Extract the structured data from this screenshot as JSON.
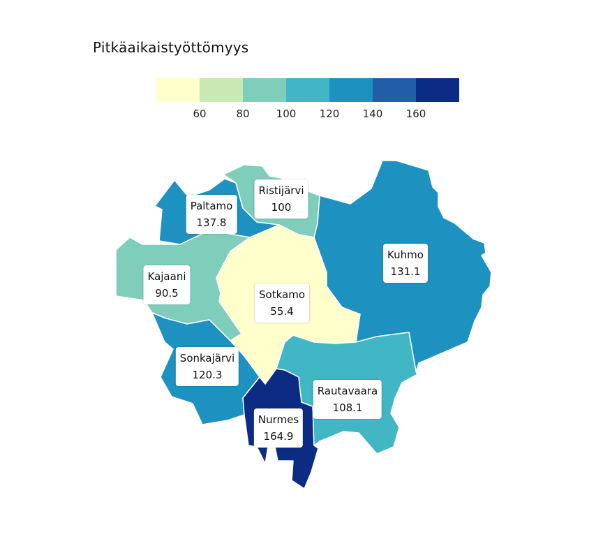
{
  "title": "Pitkäaikaistyöttömyys",
  "legend": {
    "colors": [
      "#ffffcc",
      "#c7e9b4",
      "#7fcdbb",
      "#41b6c4",
      "#1d91c0",
      "#225ea8",
      "#0c2c84"
    ],
    "ticks": [
      "60",
      "80",
      "100",
      "120",
      "140",
      "160"
    ]
  },
  "regions": [
    {
      "name": "Paltamo",
      "value": "137.8",
      "color": "#1d91c0"
    },
    {
      "name": "Ristijärvi",
      "value": "100",
      "color": "#7fcdbb"
    },
    {
      "name": "Kajaani",
      "value": "90.5",
      "color": "#7fcdbb"
    },
    {
      "name": "Sotkamo",
      "value": "55.4",
      "color": "#ffffcc"
    },
    {
      "name": "Kuhmo",
      "value": "131.1",
      "color": "#1d91c0"
    },
    {
      "name": "Sonkajärvi",
      "value": "120.3",
      "color": "#1d91c0"
    },
    {
      "name": "Nurmes",
      "value": "164.9",
      "color": "#0c2c84"
    },
    {
      "name": "Rautavaara",
      "value": "108.1",
      "color": "#41b6c4"
    }
  ]
}
